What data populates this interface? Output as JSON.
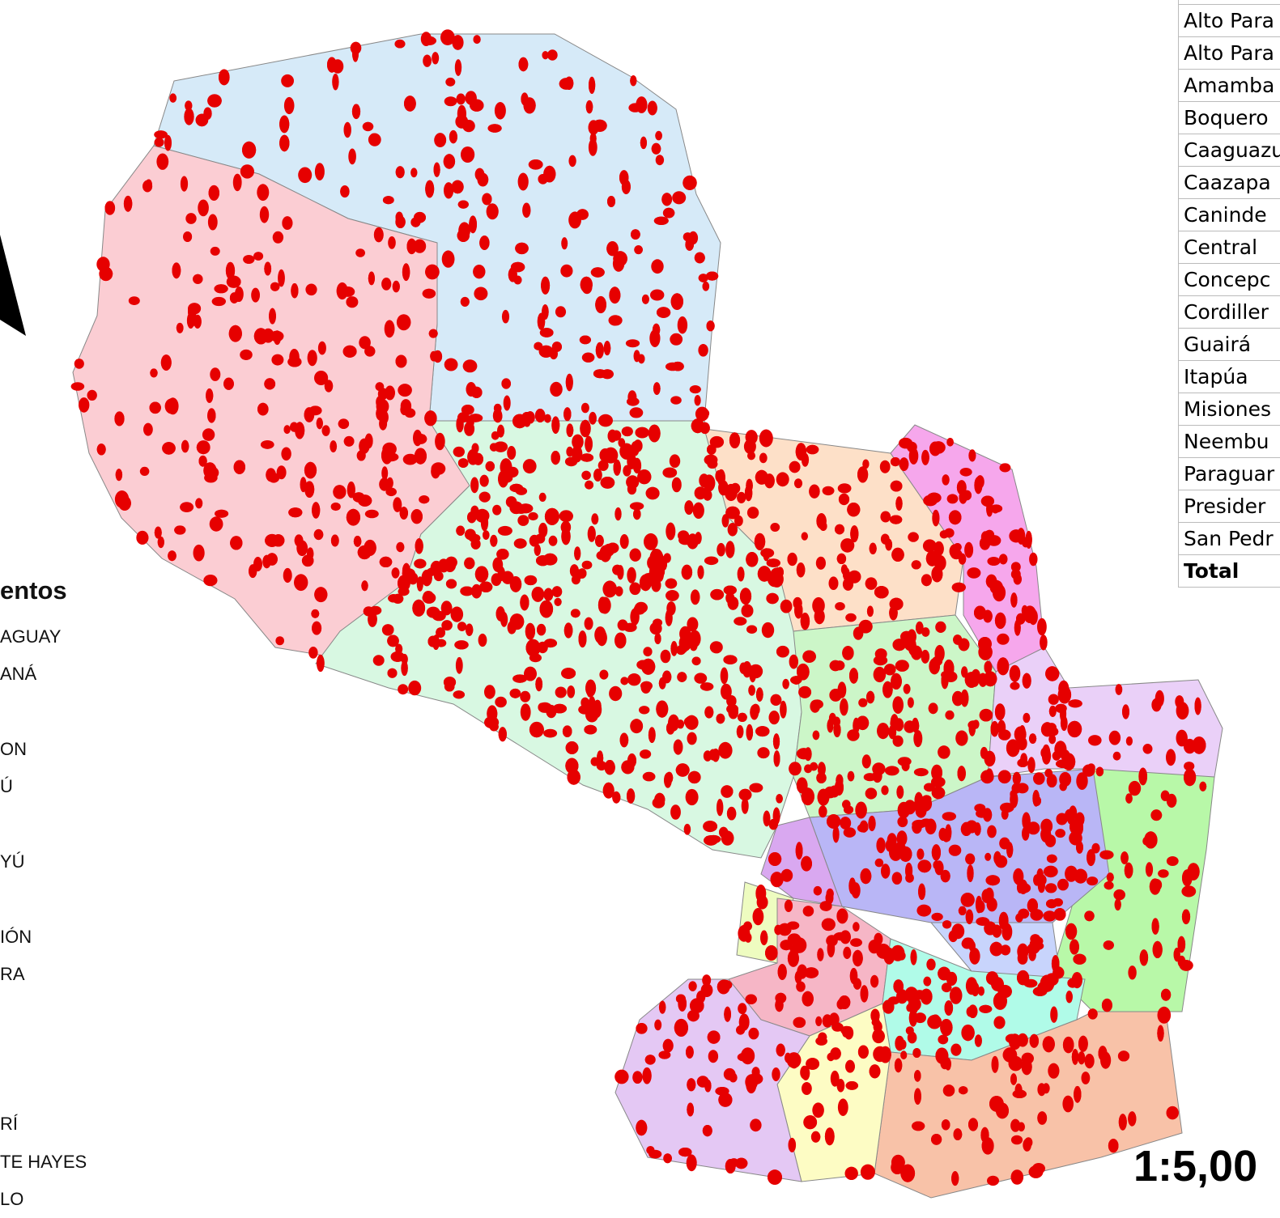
{
  "legend": {
    "title": "entos",
    "items": [
      "AGUAY",
      "ANÁ",
      "ON",
      "Ú",
      "YÚ",
      "IÓN",
      "RA",
      "RÍ",
      "TE HAYES",
      "LO"
    ]
  },
  "table": {
    "rows": [
      "Alto Para",
      "Alto Para",
      "Amamba",
      "Boquero",
      "Caaguazu",
      "Caazapa",
      "Caninde",
      "Central",
      "Concepc",
      "Cordiller",
      "Guairá",
      "Itapúa",
      "Misiones",
      "Neembu",
      "Paraguar",
      "Presider",
      "San Pedr"
    ],
    "total": "Total"
  },
  "scale": "1:5,00"
}
